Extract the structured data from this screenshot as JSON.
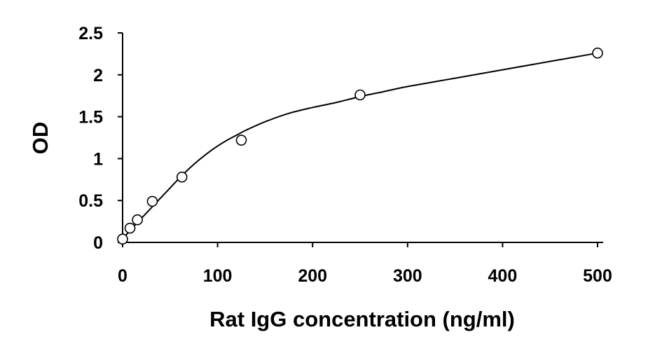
{
  "chart_data": {
    "type": "scatter",
    "title": "",
    "xlabel": "Rat IgG concentration (ng/ml)",
    "ylabel": "OD",
    "xlim": [
      0,
      500
    ],
    "ylim": [
      0,
      2.5
    ],
    "xticks": [
      0,
      100,
      200,
      300,
      400,
      500
    ],
    "xtick_labels": [
      "0",
      "100",
      "200",
      "300",
      "400",
      "500"
    ],
    "yticks": [
      0,
      0.5,
      1,
      1.5,
      2,
      2.5
    ],
    "ytick_labels": [
      "0",
      "0.5",
      "1",
      "1.5",
      "2",
      "2.5"
    ],
    "grid": false,
    "legend": "none",
    "series": [
      {
        "marker": "open-circle",
        "x": [
          0,
          7.8,
          15.6,
          31.3,
          62.5,
          125,
          250,
          500
        ],
        "y": [
          0.04,
          0.17,
          0.27,
          0.49,
          0.78,
          1.22,
          1.76,
          2.26
        ]
      }
    ],
    "fit_curve": {
      "type": "smooth fitted curve",
      "x": [
        0,
        10,
        20,
        30,
        40,
        50,
        60,
        70,
        80,
        90,
        100,
        110,
        120,
        130,
        150,
        175,
        200,
        225,
        250,
        275,
        300,
        350,
        400,
        450,
        500
      ],
      "y": [
        0.04,
        0.17,
        0.29,
        0.41,
        0.53,
        0.65,
        0.77,
        0.88,
        0.98,
        1.07,
        1.15,
        1.22,
        1.28,
        1.34,
        1.44,
        1.54,
        1.61,
        1.67,
        1.74,
        1.8,
        1.86,
        1.96,
        2.06,
        2.16,
        2.26
      ]
    }
  }
}
